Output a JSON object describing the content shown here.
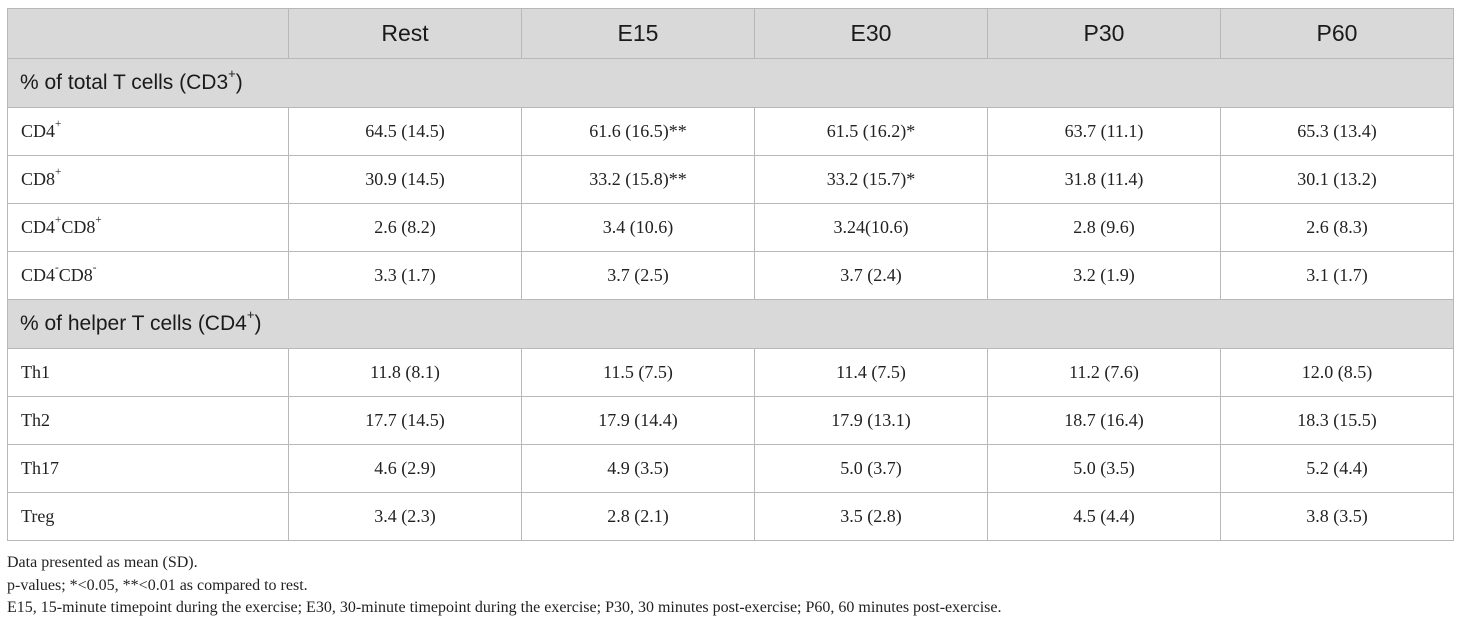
{
  "table": {
    "columns": [
      "",
      "Rest",
      "E15",
      "E30",
      "P30",
      "P60"
    ],
    "sections": [
      {
        "title": "% of total T cells (CD3",
        "title_sup": "+",
        "title_tail": ")",
        "rows": [
          {
            "label": "CD4",
            "label_sup": "+",
            "cells": [
              "64.5 (14.5)",
              "61.6 (16.5)**",
              "61.5 (16.2)*",
              "63.7 (11.1)",
              "65.3 (13.4)"
            ]
          },
          {
            "label": "CD8",
            "label_sup": "+",
            "cells": [
              "30.9 (14.5)",
              "33.2 (15.8)**",
              "33.2 (15.7)*",
              "31.8 (11.4)",
              "30.1 (13.2)"
            ]
          },
          {
            "label": "CD4",
            "label_sup": "+",
            "label_b": "CD8",
            "label_b_sup": "+",
            "cells": [
              "2.6 (8.2)",
              "3.4 (10.6)",
              "3.24(10.6)",
              "2.8 (9.6)",
              "2.6 (8.3)"
            ]
          },
          {
            "label": "CD4",
            "label_sup": "-",
            "label_b": "CD8",
            "label_b_sup": "-",
            "cells": [
              "3.3 (1.7)",
              "3.7 (2.5)",
              "3.7 (2.4)",
              "3.2 (1.9)",
              "3.1 (1.7)"
            ]
          }
        ]
      },
      {
        "title": "% of helper T cells (CD4",
        "title_sup": "+",
        "title_tail": ")",
        "rows": [
          {
            "label": "Th1",
            "cells": [
              "11.8 (8.1)",
              "11.5 (7.5)",
              "11.4 (7.5)",
              "11.2 (7.6)",
              "12.0 (8.5)"
            ]
          },
          {
            "label": "Th2",
            "cells": [
              "17.7 (14.5)",
              "17.9 (14.4)",
              "17.9 (13.1)",
              "18.7 (16.4)",
              "18.3 (15.5)"
            ]
          },
          {
            "label": "Th17",
            "cells": [
              "4.6 (2.9)",
              "4.9 (3.5)",
              "5.0 (3.7)",
              "5.0 (3.5)",
              "5.2 (4.4)"
            ]
          },
          {
            "label": "Treg",
            "cells": [
              "3.4 (2.3)",
              "2.8 (2.1)",
              "3.5 (2.8)",
              "4.5 (4.4)",
              "3.8 (3.5)"
            ]
          }
        ]
      }
    ]
  },
  "footnotes": [
    "Data presented as mean (SD).",
    "p-values; *<0.05, **<0.01 as compared to rest.",
    "E15, 15-minute timepoint during the exercise; E30, 30-minute timepoint during the exercise; P30, 30 minutes post-exercise; P60, 60 minutes post-exercise."
  ]
}
